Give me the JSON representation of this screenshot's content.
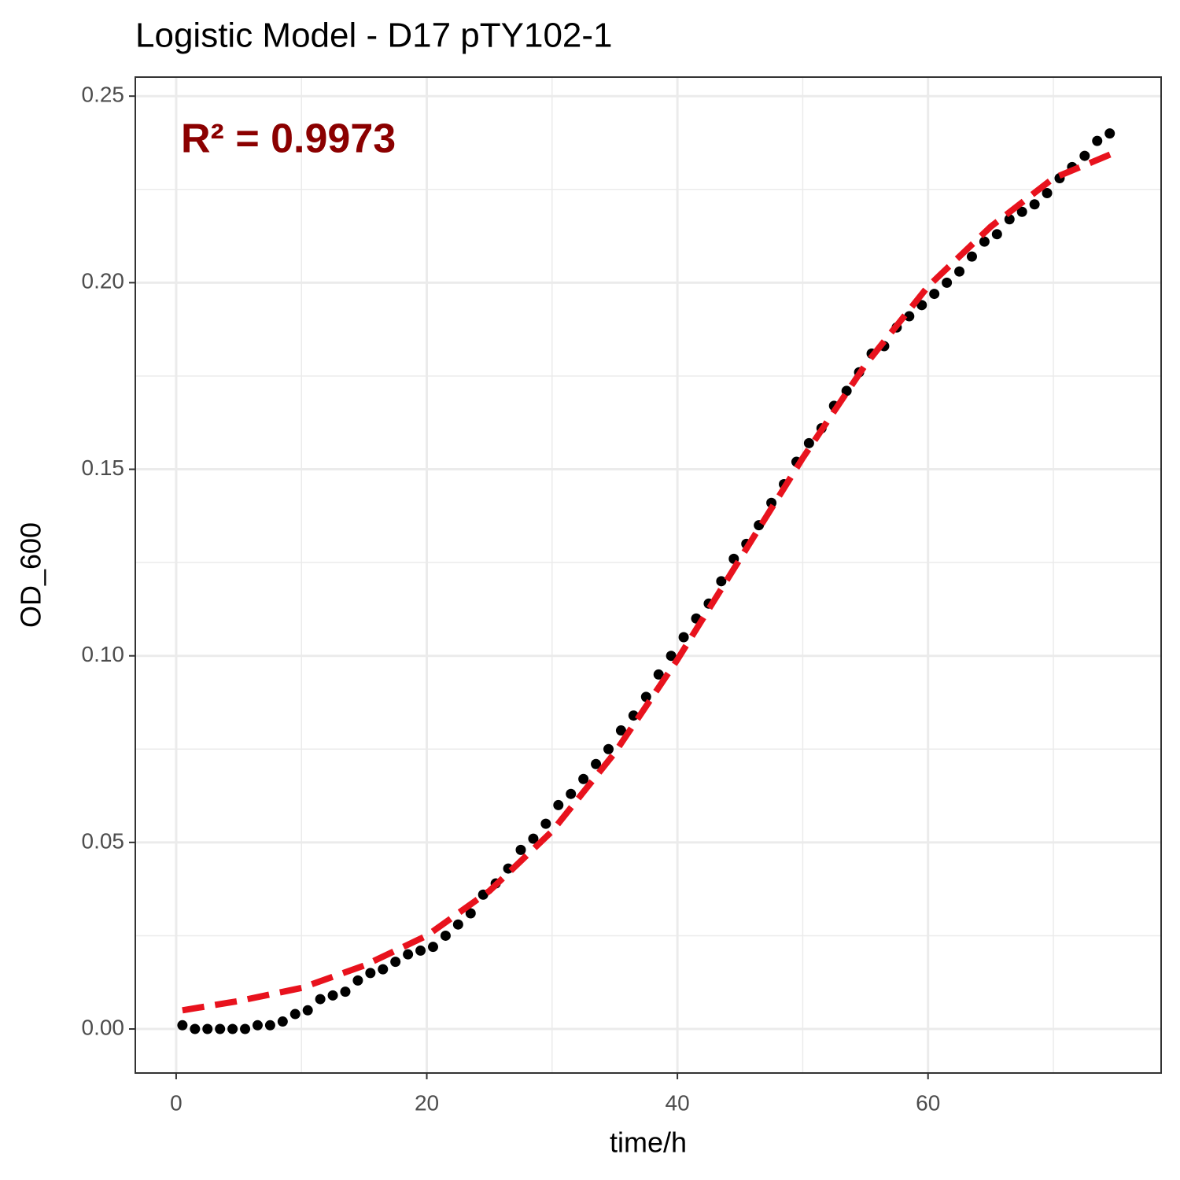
{
  "chart_data": {
    "type": "scatter",
    "title": "Logistic Model -  D17 pTY102-1",
    "xlabel": "time/h",
    "ylabel": "OD_600",
    "annotation": {
      "text": "R² = 0.9973",
      "color": "#8b0000"
    },
    "xlim": [
      -3.26,
      78.6
    ],
    "ylim": [
      -0.0118,
      0.2551
    ],
    "xticks": [
      0,
      20,
      40,
      60
    ],
    "yticks": [
      {
        "value": 0,
        "label": "0.00"
      },
      0.05,
      {
        "value": 0.1,
        "label": "0.10"
      },
      0.15,
      {
        "value": 0.2,
        "label": "0.20"
      },
      0.25
    ],
    "xminor": [
      10,
      30,
      50,
      70
    ],
    "yminor": [
      0.025,
      0.075,
      0.125,
      0.175,
      0.225
    ],
    "grid": true,
    "x": [
      0.5,
      1.5,
      2.5,
      3.5,
      4.5,
      5.5,
      6.5,
      7.5,
      8.5,
      9.5,
      10.5,
      11.5,
      12.5,
      13.5,
      14.5,
      15.5,
      16.5,
      17.5,
      18.5,
      19.5,
      20.5,
      21.5,
      22.5,
      23.5,
      24.5,
      25.5,
      26.5,
      27.5,
      28.5,
      29.5,
      30.5,
      31.5,
      32.5,
      33.5,
      34.5,
      35.5,
      36.5,
      37.5,
      38.5,
      39.5,
      40.5,
      41.5,
      42.5,
      43.5,
      44.5,
      45.5,
      46.5,
      47.5,
      48.5,
      49.5,
      50.5,
      51.5,
      52.5,
      53.5,
      54.5,
      55.5,
      56.5,
      57.5,
      58.5,
      59.5,
      60.5,
      61.5,
      62.5,
      63.5,
      64.5,
      65.5,
      66.5,
      67.5,
      68.5,
      69.5,
      70.5,
      71.5,
      72.5,
      73.5,
      74.5
    ],
    "series": [
      {
        "color": "#000000",
        "values": [
          0.001,
          0.0,
          0.0,
          0.0,
          0.0,
          0.0,
          0.001,
          0.001,
          0.002,
          0.004,
          0.005,
          0.008,
          0.009,
          0.01,
          0.013,
          0.015,
          0.016,
          0.018,
          0.02,
          0.021,
          0.022,
          0.025,
          0.028,
          0.031,
          0.036,
          0.039,
          0.043,
          0.048,
          0.051,
          0.055,
          0.06,
          0.063,
          0.067,
          0.071,
          0.075,
          0.08,
          0.084,
          0.089,
          0.095,
          0.1,
          0.105,
          0.11,
          0.114,
          0.12,
          0.126,
          0.13,
          0.135,
          0.141,
          0.146,
          0.152,
          0.157,
          0.161,
          0.167,
          0.171,
          0.176,
          0.181,
          0.183,
          0.188,
          0.191,
          0.194,
          0.197,
          0.2,
          0.203,
          0.207,
          0.211,
          0.213,
          0.217,
          0.219,
          0.221,
          0.224,
          0.228,
          0.231,
          0.234,
          0.238,
          0.24
        ]
      }
    ],
    "fit": {
      "color": "#e8121d",
      "x": [
        0.5,
        5,
        10,
        15,
        20,
        25,
        30,
        35,
        40,
        45,
        50,
        55,
        60,
        65,
        70,
        75
      ],
      "values": [
        0.005,
        0.0075,
        0.011,
        0.017,
        0.025,
        0.037,
        0.053,
        0.074,
        0.099,
        0.126,
        0.153,
        0.178,
        0.199,
        0.215,
        0.228,
        0.235
      ]
    }
  }
}
